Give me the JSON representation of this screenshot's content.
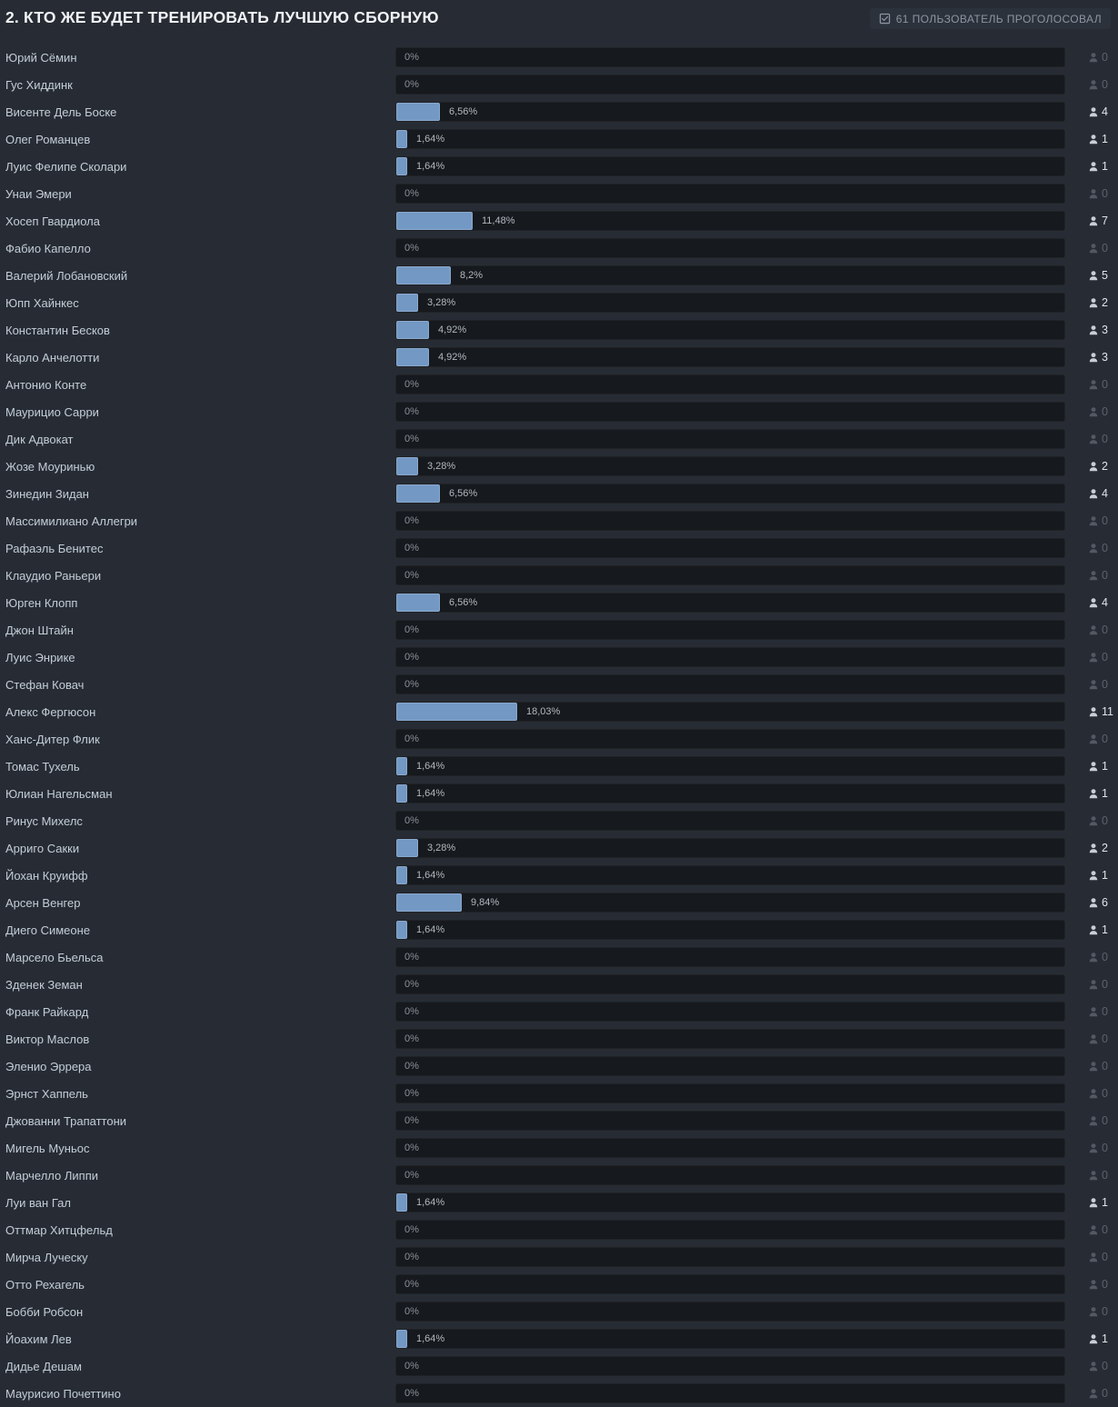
{
  "poll": {
    "question": "2. КТО ЖЕ БУДЕТ ТРЕНИРОВАТЬ ЛУЧШУЮ СБОРНУЮ",
    "voters_badge": "61 ПОЛЬЗОВАТЕЛЬ ПРОГОЛОСОВАЛ",
    "options": [
      {
        "name": "Юрий Сёмин",
        "percent_label": "0%",
        "percent": 0,
        "votes": 0
      },
      {
        "name": "Гус Хиддинк",
        "percent_label": "0%",
        "percent": 0,
        "votes": 0
      },
      {
        "name": "Висенте Дель Боске",
        "percent_label": "6,56%",
        "percent": 6.56,
        "votes": 4
      },
      {
        "name": "Олег Романцев",
        "percent_label": "1,64%",
        "percent": 1.64,
        "votes": 1
      },
      {
        "name": "Луис Фелипе Сколари",
        "percent_label": "1,64%",
        "percent": 1.64,
        "votes": 1
      },
      {
        "name": "Унаи Эмери",
        "percent_label": "0%",
        "percent": 0,
        "votes": 0
      },
      {
        "name": "Хосеп Гвардиола",
        "percent_label": "11,48%",
        "percent": 11.48,
        "votes": 7
      },
      {
        "name": "Фабио Капелло",
        "percent_label": "0%",
        "percent": 0,
        "votes": 0
      },
      {
        "name": "Валерий Лобановский",
        "percent_label": "8,2%",
        "percent": 8.2,
        "votes": 5
      },
      {
        "name": "Юпп Хайнкес",
        "percent_label": "3,28%",
        "percent": 3.28,
        "votes": 2
      },
      {
        "name": "Константин Бесков",
        "percent_label": "4,92%",
        "percent": 4.92,
        "votes": 3
      },
      {
        "name": "Карло Анчелотти",
        "percent_label": "4,92%",
        "percent": 4.92,
        "votes": 3
      },
      {
        "name": "Антонио Конте",
        "percent_label": "0%",
        "percent": 0,
        "votes": 0
      },
      {
        "name": "Маурицио Сарри",
        "percent_label": "0%",
        "percent": 0,
        "votes": 0
      },
      {
        "name": "Дик Адвокат",
        "percent_label": "0%",
        "percent": 0,
        "votes": 0
      },
      {
        "name": "Жозе Моуринью",
        "percent_label": "3,28%",
        "percent": 3.28,
        "votes": 2
      },
      {
        "name": "Зинедин Зидан",
        "percent_label": "6,56%",
        "percent": 6.56,
        "votes": 4
      },
      {
        "name": "Массимилиано Аллегри",
        "percent_label": "0%",
        "percent": 0,
        "votes": 0
      },
      {
        "name": "Рафаэль Бенитес",
        "percent_label": "0%",
        "percent": 0,
        "votes": 0
      },
      {
        "name": "Клаудио Раньери",
        "percent_label": "0%",
        "percent": 0,
        "votes": 0
      },
      {
        "name": "Юрген Клопп",
        "percent_label": "6,56%",
        "percent": 6.56,
        "votes": 4
      },
      {
        "name": "Джон Штайн",
        "percent_label": "0%",
        "percent": 0,
        "votes": 0
      },
      {
        "name": "Луис Энрике",
        "percent_label": "0%",
        "percent": 0,
        "votes": 0
      },
      {
        "name": "Стефан Ковач",
        "percent_label": "0%",
        "percent": 0,
        "votes": 0
      },
      {
        "name": "Алекс Фергюсон",
        "percent_label": "18,03%",
        "percent": 18.03,
        "votes": 11
      },
      {
        "name": "Ханс-Дитер Флик",
        "percent_label": "0%",
        "percent": 0,
        "votes": 0
      },
      {
        "name": "Томас Тухель",
        "percent_label": "1,64%",
        "percent": 1.64,
        "votes": 1
      },
      {
        "name": "Юлиан Нагельсман",
        "percent_label": "1,64%",
        "percent": 1.64,
        "votes": 1
      },
      {
        "name": "Ринус Михелс",
        "percent_label": "0%",
        "percent": 0,
        "votes": 0
      },
      {
        "name": "Арриго Сакки",
        "percent_label": "3,28%",
        "percent": 3.28,
        "votes": 2
      },
      {
        "name": "Йохан Круифф",
        "percent_label": "1,64%",
        "percent": 1.64,
        "votes": 1
      },
      {
        "name": "Арсен Венгер",
        "percent_label": "9,84%",
        "percent": 9.84,
        "votes": 6
      },
      {
        "name": "Диего Симеоне",
        "percent_label": "1,64%",
        "percent": 1.64,
        "votes": 1
      },
      {
        "name": "Марсело Бьельса",
        "percent_label": "0%",
        "percent": 0,
        "votes": 0
      },
      {
        "name": "Зденек Земан",
        "percent_label": "0%",
        "percent": 0,
        "votes": 0
      },
      {
        "name": "Франк Райкард",
        "percent_label": "0%",
        "percent": 0,
        "votes": 0
      },
      {
        "name": "Виктор Маслов",
        "percent_label": "0%",
        "percent": 0,
        "votes": 0
      },
      {
        "name": "Эленио Эррера",
        "percent_label": "0%",
        "percent": 0,
        "votes": 0
      },
      {
        "name": "Эрнст Хаппель",
        "percent_label": "0%",
        "percent": 0,
        "votes": 0
      },
      {
        "name": "Джованни Трапаттони",
        "percent_label": "0%",
        "percent": 0,
        "votes": 0
      },
      {
        "name": "Мигель Муньос",
        "percent_label": "0%",
        "percent": 0,
        "votes": 0
      },
      {
        "name": "Марчелло Липпи",
        "percent_label": "0%",
        "percent": 0,
        "votes": 0
      },
      {
        "name": "Луи ван Гал",
        "percent_label": "1,64%",
        "percent": 1.64,
        "votes": 1
      },
      {
        "name": "Оттмар Хитцфельд",
        "percent_label": "0%",
        "percent": 0,
        "votes": 0
      },
      {
        "name": "Мирча Луческу",
        "percent_label": "0%",
        "percent": 0,
        "votes": 0
      },
      {
        "name": "Отто Рехагель",
        "percent_label": "0%",
        "percent": 0,
        "votes": 0
      },
      {
        "name": "Бобби Робсон",
        "percent_label": "0%",
        "percent": 0,
        "votes": 0
      },
      {
        "name": "Йоахим Лев",
        "percent_label": "1,64%",
        "percent": 1.64,
        "votes": 1
      },
      {
        "name": "Дидье Дешам",
        "percent_label": "0%",
        "percent": 0,
        "votes": 0
      },
      {
        "name": "Маурисио Почеттино",
        "percent_label": "0%",
        "percent": 0,
        "votes": 0
      }
    ]
  },
  "icons": {
    "votes": "person-icon",
    "badge": "checkbox-checked-icon"
  },
  "colors": {
    "background": "#272c34",
    "bar_track": "#16191d",
    "bar_fill": "#7398c4",
    "option_name": "#c3cdd7",
    "percent_text": "#b2b9c0",
    "percent_text_zero": "#8a919b",
    "votes_active": "#e0e4e8",
    "votes_zero": "#5a626c",
    "badge_bg": "#2c323b",
    "badge_text": "#8b95a1",
    "title_text": "#f1f3f6"
  }
}
